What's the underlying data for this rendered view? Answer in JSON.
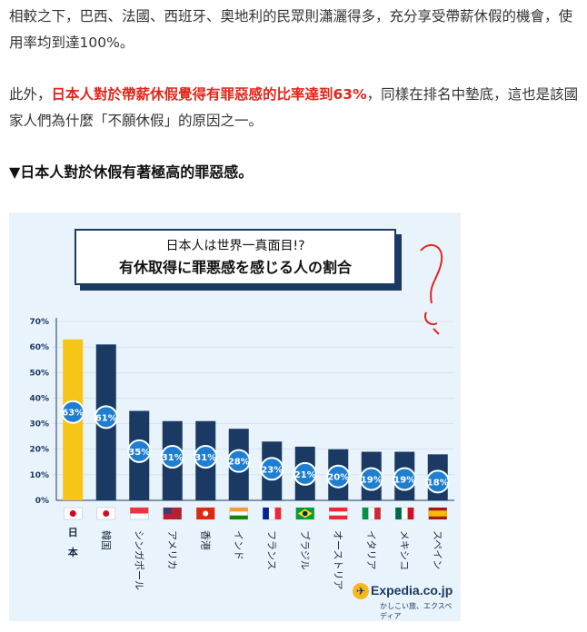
{
  "article": {
    "p1": "相較之下，巴西、法國、西班牙、奧地利的民眾則瀟灑得多，充分享受帶薪休假的機會，使用率均到達100%。",
    "p2_before": "此外，",
    "p2_highlight": "日本人對於帶薪休假覺得有罪惡感的比率達到63%",
    "p2_after": "，同樣在排名中墊底，這也是該國家人們為什麼「不願休假」的原因之一。",
    "heading": "▼日本人對於休假有著極高的罪惡感。"
  },
  "infographic": {
    "title_line1": "日本人は世界一真面目!?",
    "title_line2": "有休取得に罪悪感を感じる人の割合",
    "logo_text": "Expedia.co.jp",
    "logo_sub": "かしこい旅、エクスペディア",
    "logo_icon": "plane-globe-icon"
  },
  "chart_data": {
    "type": "bar",
    "categories": [
      "日本",
      "韓国",
      "シンガポール",
      "アメリカ",
      "香港",
      "インド",
      "フランス",
      "ブラジル",
      "オーストリア",
      "イタリア",
      "メキシコ",
      "スペイン"
    ],
    "values": [
      63,
      61,
      35,
      31,
      31,
      28,
      23,
      21,
      20,
      19,
      19,
      18
    ],
    "value_labels": [
      "63%",
      "61%",
      "35%",
      "31%",
      "31%",
      "28%",
      "23%",
      "21%",
      "20%",
      "19%",
      "19%",
      "18%"
    ],
    "yticks": [
      "0%",
      "10%",
      "20%",
      "30%",
      "40%",
      "50%",
      "60%",
      "70%"
    ],
    "ylim": [
      0,
      70
    ],
    "colors": {
      "highlight": "#f5c518",
      "bar": "#1a3a63",
      "bubble": "#1e7fd0",
      "axis": "#1a3a63"
    },
    "flags": [
      "japan-flag-icon",
      "korea-flag-icon",
      "singapore-flag-icon",
      "usa-flag-icon",
      "hongkong-flag-icon",
      "india-flag-icon",
      "france-flag-icon",
      "brazil-flag-icon",
      "austria-flag-icon",
      "italy-flag-icon",
      "mexico-flag-icon",
      "spain-flag-icon"
    ]
  }
}
